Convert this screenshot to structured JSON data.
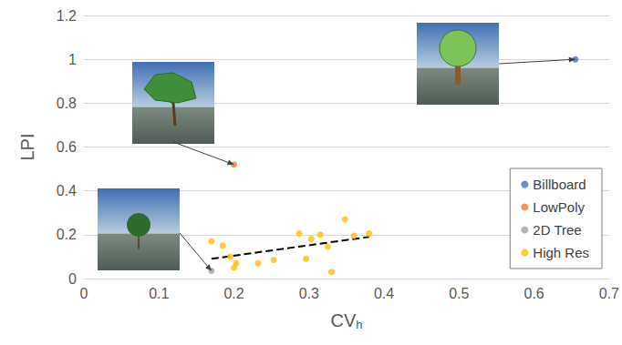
{
  "chart_data": {
    "type": "scatter",
    "x_label": "CVh",
    "y_label": "LPI",
    "xlim": [
      0,
      0.7
    ],
    "xticks": [
      0,
      0.1,
      0.2,
      0.3,
      0.4,
      0.5,
      0.6,
      0.7
    ],
    "ylim": [
      0,
      1.2
    ],
    "yticks": [
      0,
      0.2,
      0.4,
      0.6,
      0.8,
      1,
      1.2
    ],
    "grid": true,
    "legend": "lower right",
    "series": [
      {
        "name": "Billboard",
        "color": "#4472c4",
        "marker": "circle",
        "x": [
          0.655
        ],
        "values": [
          1.0
        ]
      },
      {
        "name": "LowPoly",
        "color": "#ed7d31",
        "marker": "circle",
        "x": [
          0.2
        ],
        "values": [
          0.52
        ]
      },
      {
        "name": "2D Tree",
        "color": "#a5a5a5",
        "marker": "circle",
        "x": [
          0.17
        ],
        "values": [
          0.035
        ]
      },
      {
        "name": "High Res",
        "color": "#ffc000",
        "marker": "circle",
        "x": [
          0.17,
          0.185,
          0.195,
          0.2,
          0.203,
          0.232,
          0.253,
          0.287,
          0.296,
          0.303,
          0.315,
          0.325,
          0.33,
          0.348,
          0.36,
          0.38
        ],
        "values": [
          0.17,
          0.15,
          0.1,
          0.05,
          0.07,
          0.07,
          0.085,
          0.205,
          0.09,
          0.18,
          0.2,
          0.145,
          0.03,
          0.27,
          0.195,
          0.205
        ]
      },
      {
        "type": "line",
        "color": "#000000",
        "line_style": "dashed",
        "x": [
          0.17,
          0.38
        ],
        "values": [
          0.09,
          0.19
        ]
      }
    ]
  }
}
